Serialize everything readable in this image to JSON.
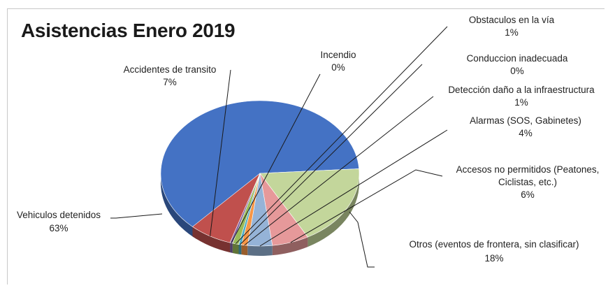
{
  "chart_data": {
    "type": "pie",
    "title": "Asistencias Enero 2019",
    "slices": [
      {
        "name": "Vehiculos detenidos",
        "value": 63,
        "label": "63%",
        "color": "#4472c4"
      },
      {
        "name": "Otros (eventos de frontera, sin clasificar)",
        "value": 18,
        "label": "18%",
        "color": "#c3d69b"
      },
      {
        "name": "Accesos no permitidos (Peatones, Ciclistas, etc.)",
        "value": 6,
        "label": "6%",
        "color": "#e6999a"
      },
      {
        "name": "Alarmas (SOS, Gabinetes)",
        "value": 4,
        "label": "4%",
        "color": "#95b3d7"
      },
      {
        "name": "Detección daño a la infraestructura",
        "value": 1,
        "label": "1%",
        "color": "#f79646"
      },
      {
        "name": "Conduccion inadecuada",
        "value": 0,
        "label": "0%",
        "color": "#4bacc6"
      },
      {
        "name": "Obstaculos en la vía",
        "value": 1,
        "label": "1%",
        "color": "#9bbb59"
      },
      {
        "name": "Incendio",
        "value": 0,
        "label": "0%",
        "color": "#8064a2"
      },
      {
        "name": "Accidentes de transito",
        "value": 7,
        "label": "7%",
        "color": "#c0504d"
      }
    ],
    "label_lines": {
      "vehiculos": [
        "Vehiculos detenidos",
        "63%"
      ],
      "otros": [
        "Otros (eventos de frontera, sin clasificar)",
        "18%"
      ],
      "accesos": [
        "Accesos no permitidos (Peatones,",
        "Ciclistas, etc.)",
        "6%"
      ],
      "alarmas": [
        "Alarmas (SOS, Gabinetes)",
        "4%"
      ],
      "deteccion": [
        "Detección daño a la infraestructura",
        "1%"
      ],
      "conduccion": [
        "Conduccion inadecuada",
        "0%"
      ],
      "obstaculos": [
        "Obstaculos en la vía",
        "1%"
      ],
      "incendio": [
        "Incendio",
        "0%"
      ],
      "accidentes": [
        "Accidentes de transito",
        "7%"
      ]
    },
    "legend": "none",
    "grid": false
  }
}
